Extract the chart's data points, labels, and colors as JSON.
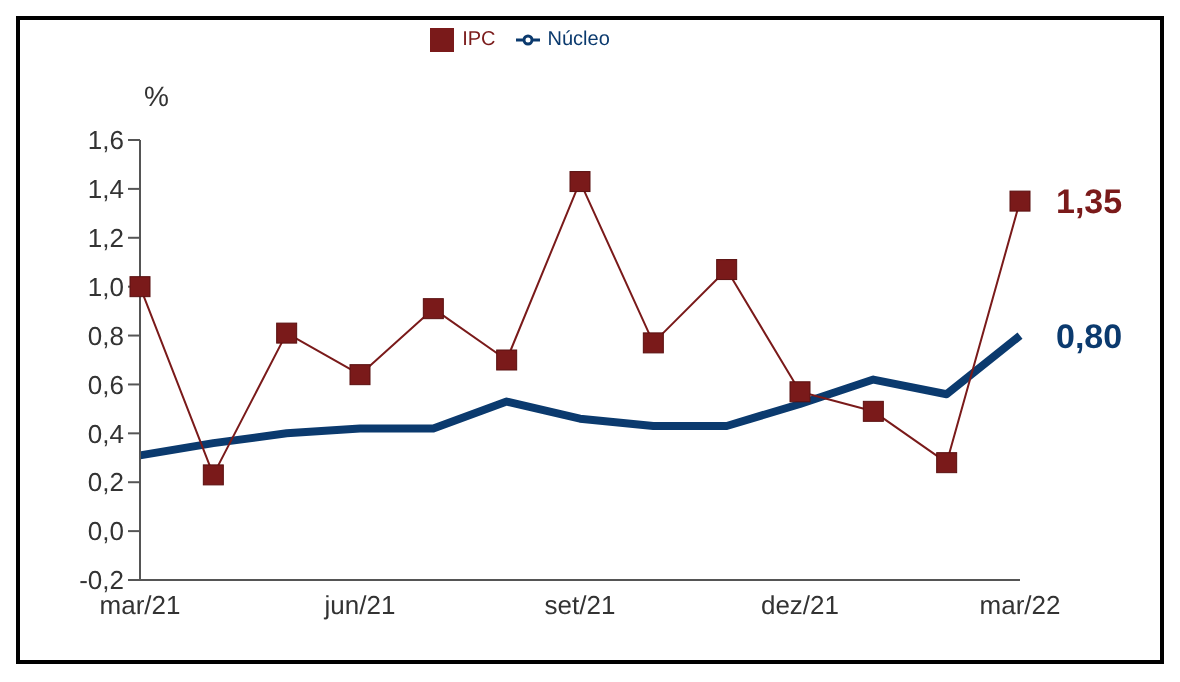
{
  "chart_data": {
    "type": "line",
    "ylabel": "%",
    "categories": [
      "mar/21",
      null,
      null,
      "jun/21",
      null,
      null,
      "set/21",
      null,
      null,
      "dez/21",
      null,
      null,
      "mar/22"
    ],
    "series": [
      {
        "name": "Núcleo",
        "color": "#0b3a6e",
        "marker": "none",
        "values": [
          0.31,
          0.36,
          0.4,
          0.42,
          0.42,
          0.53,
          0.46,
          0.43,
          0.43,
          0.52,
          0.62,
          0.56,
          0.8
        ]
      },
      {
        "name": "IPC",
        "color": "#7a1a1a",
        "marker": "square",
        "values": [
          1.0,
          0.23,
          0.81,
          0.64,
          0.91,
          0.7,
          1.43,
          0.77,
          1.07,
          0.57,
          0.49,
          0.28,
          1.35
        ]
      }
    ],
    "ylim": [
      -0.2,
      1.6
    ],
    "yticks": [
      {
        "value": -0.2,
        "label": "-0,2"
      },
      {
        "value": 0,
        "label": "0,0"
      },
      {
        "value": 0.2,
        "label": "0,2"
      },
      {
        "value": 0.4,
        "label": "0,4"
      },
      {
        "value": 0.6,
        "label": "0,6"
      },
      {
        "value": 0.8,
        "label": "0,8"
      },
      {
        "value": 1.0,
        "label": "1,0"
      },
      {
        "value": 1.2,
        "label": "1,2"
      },
      {
        "value": 1.4,
        "label": "1,4"
      },
      {
        "value": 1.6,
        "label": "1,6"
      }
    ],
    "annotations": [
      {
        "text": "0,80",
        "x": "mar/22",
        "y": 0.8
      },
      {
        "text": "1,35",
        "x": "mar/22",
        "y": 1.35
      }
    ],
    "grid": false,
    "legend": "top"
  }
}
